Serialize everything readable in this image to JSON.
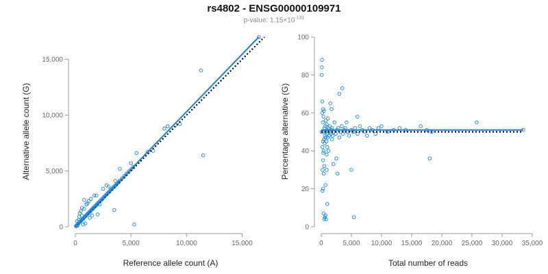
{
  "header": {
    "title": "rs4802 - ENSG00000109971",
    "pvalue_prefix": "p-value: 1.15×10",
    "pvalue_exponent": "-131"
  },
  "colors": {
    "points": "#2b8fd6",
    "fit_line": "#1e7fd8",
    "expected_line": "#000000",
    "axis": "#999999"
  },
  "chart_data": [
    {
      "type": "scatter",
      "title": "",
      "xlabel": "Reference allele count (A)",
      "ylabel": "Alternative allele count (G)",
      "xlim": [
        0,
        17000
      ],
      "ylim": [
        0,
        17000
      ],
      "xticks": [
        0,
        5000,
        10000,
        15000
      ],
      "xtick_labels": [
        "0",
        "5,000",
        "10,000",
        "15,000"
      ],
      "yticks": [
        0,
        5000,
        10000,
        15000
      ],
      "ytick_labels": [
        "0",
        "5,000",
        "10,000",
        "15,000"
      ],
      "grid": false,
      "fit_line": {
        "x": [
          0,
          16500
        ],
        "y": [
          0,
          17000
        ]
      },
      "expected_line": {
        "x": [
          0,
          17000
        ],
        "y": [
          0,
          17000
        ]
      },
      "points": {
        "x": [
          50,
          100,
          150,
          200,
          250,
          300,
          350,
          400,
          450,
          500,
          550,
          600,
          650,
          700,
          750,
          800,
          850,
          900,
          950,
          1000,
          1050,
          1100,
          1150,
          1200,
          1250,
          1300,
          1350,
          1400,
          1450,
          1500,
          1550,
          1600,
          1650,
          1700,
          1750,
          1800,
          1850,
          1900,
          1950,
          2000,
          2100,
          2200,
          2300,
          2400,
          2500,
          2600,
          2700,
          2800,
          2900,
          3000,
          3100,
          3200,
          3300,
          3400,
          3500,
          3600,
          3700,
          3800,
          3900,
          4000,
          4200,
          4400,
          4600,
          4800,
          5000,
          5200,
          400,
          600,
          800,
          1100,
          1200,
          1400,
          1700,
          2000,
          700,
          900,
          1300,
          1500,
          1900,
          2200,
          2500,
          2800,
          300,
          500,
          1000,
          3000,
          3500,
          3600,
          4000,
          5000,
          5500,
          6500,
          7000,
          8000,
          8300,
          9000,
          9400,
          11300,
          11500,
          16500,
          5300,
          800,
          200,
          150,
          350,
          600
        ],
        "y": [
          40,
          110,
          150,
          220,
          260,
          330,
          360,
          420,
          470,
          520,
          580,
          620,
          690,
          720,
          790,
          840,
          880,
          950,
          990,
          1040,
          1100,
          1150,
          1200,
          1260,
          1300,
          1360,
          1400,
          1450,
          1520,
          1560,
          1600,
          1670,
          1700,
          1780,
          1800,
          1860,
          1900,
          1980,
          2000,
          2080,
          2180,
          2280,
          2380,
          2480,
          2580,
          2700,
          2780,
          2900,
          3000,
          3100,
          3200,
          3320,
          3400,
          3520,
          3600,
          3700,
          3820,
          3900,
          4000,
          4150,
          4350,
          4550,
          4750,
          4950,
          5150,
          5350,
          1200,
          1700,
          1600,
          2100,
          2300,
          2500,
          2800,
          1100,
          200,
          300,
          800,
          1000,
          2800,
          2000,
          3400,
          3700,
          600,
          1400,
          2000,
          3600,
          1500,
          4100,
          5200,
          5700,
          6600,
          6700,
          6800,
          8800,
          9000,
          9100,
          9200,
          14000,
          6400,
          17000,
          200,
          2400,
          100,
          500,
          900,
          1000
        ]
      }
    },
    {
      "type": "scatter",
      "title": "",
      "xlabel": "Total number of reads",
      "ylabel": "Percentage alternative (G)",
      "xlim": [
        0,
        35000
      ],
      "ylim": [
        0,
        100
      ],
      "xticks": [
        0,
        5000,
        10000,
        15000,
        20000,
        25000,
        30000,
        35000
      ],
      "xtick_labels": [
        "0",
        "5,000",
        "10,000",
        "15,000",
        "20,000",
        "25,000",
        "30,000",
        "35,000"
      ],
      "yticks": [
        0,
        20,
        40,
        60,
        80,
        100
      ],
      "ytick_labels": [
        "0",
        "20",
        "40",
        "60",
        "80",
        "100"
      ],
      "grid": false,
      "fit_line": {
        "x": [
          0,
          33500
        ],
        "y": [
          51,
          51
        ]
      },
      "expected_line": {
        "x": [
          0,
          33500
        ],
        "y": [
          50,
          50
        ]
      },
      "points": {
        "x": [
          50,
          80,
          100,
          120,
          150,
          180,
          200,
          220,
          250,
          300,
          320,
          350,
          400,
          420,
          450,
          500,
          520,
          550,
          600,
          650,
          700,
          750,
          800,
          850,
          900,
          950,
          1000,
          1100,
          1200,
          1300,
          1400,
          1500,
          1600,
          1700,
          1800,
          1900,
          2000,
          2200,
          2400,
          2600,
          2800,
          3000,
          3200,
          3400,
          3600,
          3800,
          4000,
          4300,
          4600,
          5000,
          5300,
          5600,
          6000,
          6400,
          6800,
          7200,
          7600,
          8000,
          8500,
          9000,
          9500,
          10000,
          11000,
          12000,
          13000,
          14000,
          16500,
          17500,
          18000,
          18300,
          25800,
          33500,
          200,
          300,
          400,
          500,
          600,
          700,
          800,
          900,
          1000,
          1200,
          1500,
          1800,
          2000,
          2500,
          3000,
          2700,
          5000,
          5400,
          1700,
          3500,
          4200,
          6000,
          700,
          1000,
          1100,
          900,
          300,
          350,
          250,
          450
        ],
        "y": [
          50,
          80,
          84,
          88,
          60,
          66,
          42,
          30,
          55,
          35,
          62,
          58,
          40,
          28,
          46,
          32,
          52,
          44,
          48,
          53,
          22,
          56,
          50,
          45,
          54,
          49,
          51,
          47,
          52,
          48,
          53,
          50,
          49,
          51,
          52,
          48,
          50,
          55,
          49,
          51,
          52,
          47,
          50,
          53,
          49,
          51,
          52,
          50,
          48,
          51,
          50,
          52,
          49,
          53,
          51,
          50,
          48,
          52,
          51,
          49,
          52,
          53,
          50,
          51,
          52,
          51,
          53,
          51,
          36,
          50,
          55,
          51,
          19,
          20,
          7,
          4,
          5,
          6,
          4,
          30,
          12,
          40,
          65,
          46,
          33,
          36,
          70,
          28,
          30,
          5,
          62,
          73,
          55,
          58,
          47,
          42,
          57,
          38,
          45,
          39,
          50,
          61
        ]
      }
    }
  ]
}
